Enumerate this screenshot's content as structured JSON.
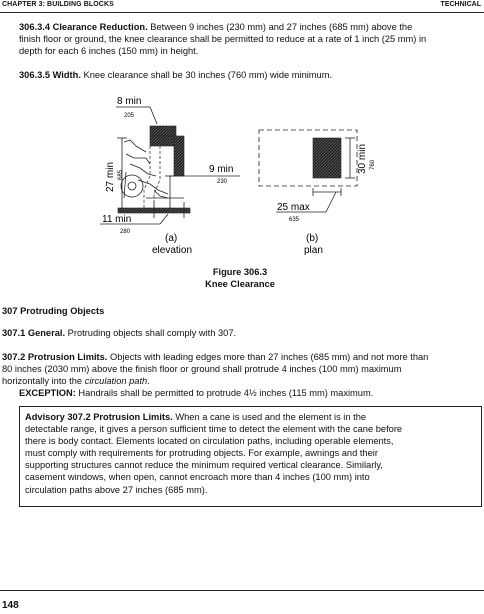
{
  "header": {
    "left": "CHAPTER 3: BUILDING BLOCKS",
    "right": "TECHNICAL"
  },
  "s306_3_4": {
    "title": "306.3.4 Clearance Reduction.",
    "text1": " Between 9 inches (230 mm) and 27 inches (685 mm) above the",
    "text2": "finish floor or ground, the knee clearance shall be permitted to reduce at a rate of 1 inch (25 mm) in",
    "text3": "depth for each 6 inches (150 mm) in height."
  },
  "s306_3_5": {
    "title": "306.3.5 Width.",
    "text": " Knee clearance shall be 30 inches (760 mm) wide minimum."
  },
  "figure": {
    "elevation": {
      "top_label": "8 min",
      "top_sub": "205",
      "side_label": "27 min",
      "side_sub": "685",
      "mid_label": "9 min",
      "mid_sub": "230",
      "bottom_label": "11 min",
      "bottom_sub": "280",
      "letter": "(a)",
      "caption": "elevation"
    },
    "plan": {
      "side_label": "30 min",
      "side_sub": "760",
      "bottom_label": "25 max",
      "bottom_sub": "635",
      "letter": "(b)",
      "caption": "plan"
    },
    "number": "Figure 306.3",
    "title": "Knee Clearance"
  },
  "s307": {
    "heading": "307 Protruding Objects",
    "general_title": "307.1 General.",
    "general_text": " Protruding objects shall comply with 307.",
    "limits_title": "307.2 Protrusion Limits.",
    "limits_text1": " Objects with leading edges more than 27 inches (685 mm) and not more than",
    "limits_text2": "80 inches (2030 mm) above the finish floor or ground shall protrude 4 inches (100 mm) maximum",
    "limits_text3_pre": "horizontally into the ",
    "limits_text3_italic": "circulation path",
    "limits_text3_post": ".",
    "exception_title": "EXCEPTION:",
    "exception_text": " Handrails shall be permitted to protrude 4½ inches (115 mm) maximum."
  },
  "advisory": {
    "title": "Advisory 307.2 Protrusion Limits.",
    "line1": " When a cane is used and the element is in the",
    "line2": "detectable range, it gives a person sufficient time to detect the element with the cane before",
    "line3": "there is body contact.  Elements located on circulation paths, including operable elements,",
    "line4": "must comply with requirements for protruding objects.  For example, awnings and their",
    "line5": "supporting structures cannot reduce the minimum required vertical clearance.  Similarly,",
    "line6": "casement windows, when open, cannot encroach more than 4 inches (100 mm) into",
    "line7": "circulation paths above 27 inches (685 mm)."
  },
  "footer": {
    "page_number": "148"
  }
}
